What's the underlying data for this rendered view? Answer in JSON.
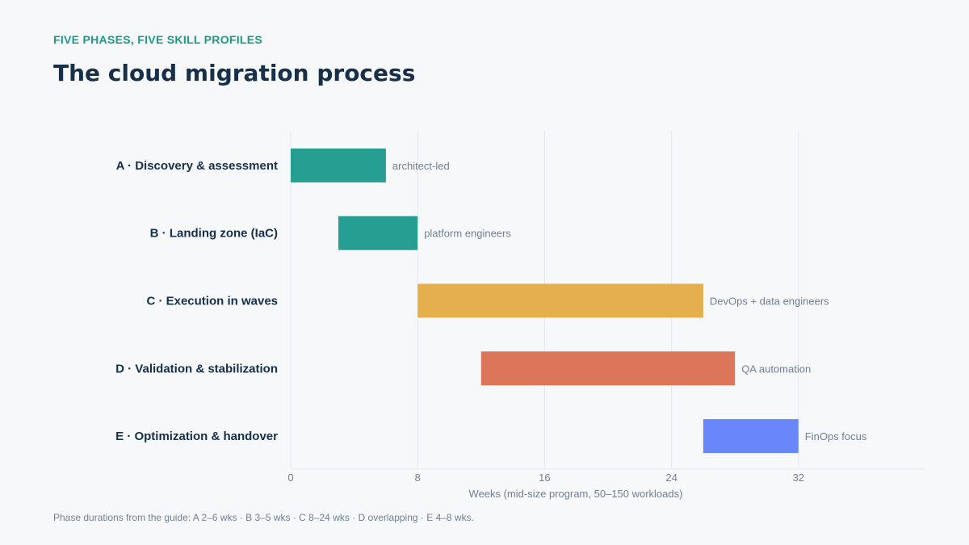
{
  "header": {
    "eyebrow": "FIVE PHASES, FIVE SKILL PROFILES",
    "title": "The cloud migration process"
  },
  "footnote": "Phase durations from the guide: A 2–6 wks · B 3–5 wks · C 8–24 wks · D overlapping · E 4–8 wks.",
  "chart_data": {
    "type": "bar",
    "orientation": "horizontal-gantt",
    "xlabel": "Weeks (mid-size program, 50–150 workloads)",
    "xlim": [
      0,
      40
    ],
    "xticks": [
      0,
      8,
      16,
      24,
      32
    ],
    "grid": true,
    "tasks": [
      {
        "label": "A · Discovery & assessment",
        "start": 0,
        "end": 6,
        "annotation": "architect-led",
        "color": "#269e92"
      },
      {
        "label": "B · Landing zone (IaC)",
        "start": 3,
        "end": 8,
        "annotation": "platform engineers",
        "color": "#269e92"
      },
      {
        "label": "C · Execution in waves",
        "start": 8,
        "end": 26,
        "annotation": "DevOps + data engineers",
        "color": "#e4af4c"
      },
      {
        "label": "D · Validation & stabilization",
        "start": 12,
        "end": 28,
        "annotation": "QA automation",
        "color": "#dc765b"
      },
      {
        "label": "E · Optimization & handover",
        "start": 26,
        "end": 32,
        "annotation": "FinOps focus",
        "color": "#6986fb"
      }
    ],
    "colors": {
      "axis_text": "#718096",
      "task_label": "#16304c",
      "gridline": "#e6e9ee"
    }
  }
}
